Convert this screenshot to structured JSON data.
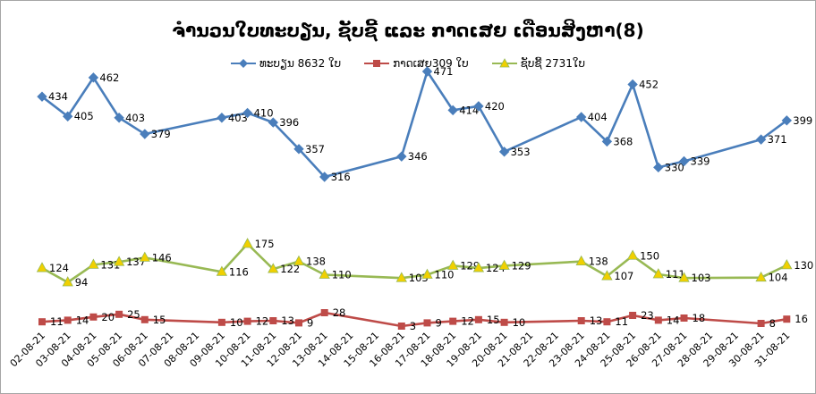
{
  "chart_data": {
    "type": "line",
    "title": "ຈຳນວນໃບທະບຽນ, ຊັບຊີ້   ແລະ  ກາດເສຍ  ເດືອນສິງຫາ(8)",
    "categories": [
      "02-08-21",
      "03-08-21",
      "04-08-21",
      "05-08-21",
      "06-08-21",
      "07-08-21",
      "08-08-21",
      "09-08-21",
      "10-08-21",
      "11-08-21",
      "12-08-21",
      "13-08-21",
      "14-08-21",
      "15-08-21",
      "16-08-21",
      "17-08-21",
      "18-08-21",
      "19-08-21",
      "20-08-21",
      "21-08-21",
      "22-08-21",
      "23-08-21",
      "24-08-21",
      "25-08-21",
      "26-08-21",
      "27-08-21",
      "28-08-21",
      "29-08-21",
      "30-08-21",
      "31-08-21"
    ],
    "legend_position": "top",
    "grid": false,
    "series": [
      {
        "name": "ທະບຽນ 8632 ໃບ",
        "color": "#4a7ebb",
        "marker": "diamond",
        "values": [
          434,
          405,
          462,
          403,
          379,
          null,
          null,
          403,
          410,
          396,
          357,
          316,
          null,
          null,
          346,
          471,
          414,
          420,
          353,
          null,
          null,
          404,
          368,
          452,
          330,
          339,
          null,
          null,
          371,
          399
        ]
      },
      {
        "name": "ກາດເສຍ309 ໃບ",
        "color": "#be4b48",
        "marker": "square",
        "values": [
          11,
          14,
          20,
          25,
          15,
          null,
          null,
          10,
          12,
          13,
          9,
          28,
          null,
          null,
          3,
          9,
          12,
          15,
          10,
          null,
          null,
          13,
          11,
          23,
          14,
          18,
          null,
          null,
          8,
          16
        ]
      },
      {
        "name": "ຊັບຊີ້ 2731ໃບ",
        "color": "#98b954",
        "marker": "triangle",
        "values": [
          124,
          94,
          131,
          137,
          146,
          null,
          null,
          116,
          175,
          122,
          138,
          110,
          null,
          null,
          103,
          110,
          129,
          124,
          129,
          null,
          null,
          138,
          107,
          150,
          111,
          103,
          null,
          null,
          104,
          130
        ]
      }
    ]
  }
}
